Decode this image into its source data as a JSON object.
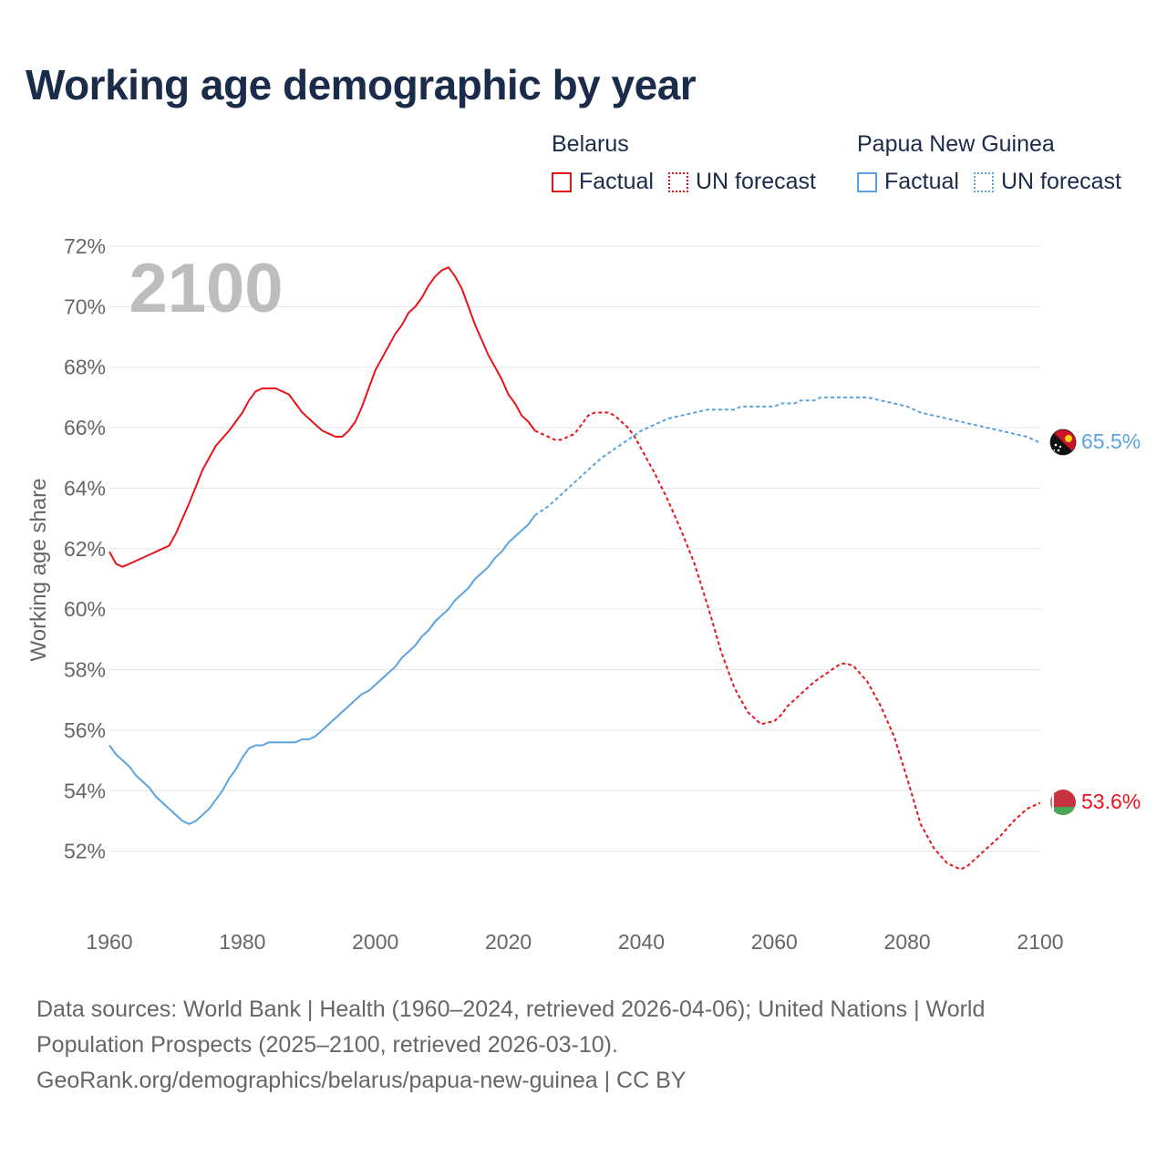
{
  "title": "Working age demographic by year",
  "legend": {
    "groups": [
      {
        "name": "Belarus",
        "color": "#e8141a",
        "factual_label": "Factual",
        "forecast_label": "UN forecast"
      },
      {
        "name": "Papua New Guinea",
        "color": "#5ba3e0",
        "factual_label": "Factual",
        "forecast_label": "UN forecast"
      }
    ]
  },
  "year_watermark": "2100",
  "end_labels": {
    "belarus": "53.6%",
    "png": "65.5%"
  },
  "footer": {
    "line1": "Data sources: World Bank | Health (1960–2024, retrieved 2026-04-06); United Nations | World",
    "line2": "Population Prospects (2025–2100, retrieved 2026-03-10).",
    "line3": "GeoRank.org/demographics/belarus/papua-new-guinea | CC BY"
  },
  "chart_data": {
    "type": "line",
    "title": "Working age demographic by year",
    "xlabel": "",
    "ylabel": "Working age share",
    "xlim": [
      1960,
      2100
    ],
    "ylim": [
      50,
      72
    ],
    "x_ticks": [
      "1960",
      "1980",
      "2000",
      "2020",
      "2040",
      "2060",
      "2080",
      "2100"
    ],
    "y_ticks": [
      "52%",
      "54%",
      "56%",
      "58%",
      "60%",
      "62%",
      "64%",
      "66%",
      "68%",
      "70%",
      "72%"
    ],
    "series": [
      {
        "name": "Belarus",
        "kind": "Factual",
        "color": "#e8141a",
        "points": [
          [
            1960,
            61.9
          ],
          [
            1961,
            61.5
          ],
          [
            1962,
            61.4
          ],
          [
            1964,
            61.6
          ],
          [
            1966,
            61.8
          ],
          [
            1968,
            62.0
          ],
          [
            1969,
            62.1
          ],
          [
            1970,
            62.5
          ],
          [
            1972,
            63.5
          ],
          [
            1974,
            64.6
          ],
          [
            1976,
            65.4
          ],
          [
            1978,
            65.9
          ],
          [
            1979,
            66.2
          ],
          [
            1980,
            66.5
          ],
          [
            1981,
            66.9
          ],
          [
            1982,
            67.2
          ],
          [
            1983,
            67.3
          ],
          [
            1984,
            67.3
          ],
          [
            1985,
            67.3
          ],
          [
            1986,
            67.2
          ],
          [
            1987,
            67.1
          ],
          [
            1988,
            66.8
          ],
          [
            1989,
            66.5
          ],
          [
            1990,
            66.3
          ],
          [
            1992,
            65.9
          ],
          [
            1993,
            65.8
          ],
          [
            1994,
            65.7
          ],
          [
            1995,
            65.7
          ],
          [
            1996,
            65.9
          ],
          [
            1997,
            66.2
          ],
          [
            1998,
            66.7
          ],
          [
            1999,
            67.3
          ],
          [
            2000,
            67.9
          ],
          [
            2001,
            68.3
          ],
          [
            2002,
            68.7
          ],
          [
            2003,
            69.1
          ],
          [
            2004,
            69.4
          ],
          [
            2005,
            69.8
          ],
          [
            2006,
            70.0
          ],
          [
            2007,
            70.3
          ],
          [
            2008,
            70.7
          ],
          [
            2009,
            71.0
          ],
          [
            2010,
            71.2
          ],
          [
            2011,
            71.3
          ],
          [
            2012,
            71.0
          ],
          [
            2013,
            70.6
          ],
          [
            2014,
            70.0
          ],
          [
            2015,
            69.4
          ],
          [
            2016,
            68.9
          ],
          [
            2017,
            68.4
          ],
          [
            2018,
            68.0
          ],
          [
            2019,
            67.6
          ],
          [
            2020,
            67.1
          ],
          [
            2021,
            66.8
          ],
          [
            2022,
            66.4
          ],
          [
            2023,
            66.2
          ],
          [
            2024,
            65.9
          ]
        ]
      },
      {
        "name": "Belarus",
        "kind": "UN forecast",
        "color": "#e8141a",
        "points": [
          [
            2024,
            65.9
          ],
          [
            2025,
            65.8
          ],
          [
            2026,
            65.7
          ],
          [
            2027,
            65.6
          ],
          [
            2028,
            65.6
          ],
          [
            2029,
            65.7
          ],
          [
            2030,
            65.8
          ],
          [
            2031,
            66.1
          ],
          [
            2032,
            66.4
          ],
          [
            2033,
            66.5
          ],
          [
            2034,
            66.5
          ],
          [
            2035,
            66.5
          ],
          [
            2036,
            66.4
          ],
          [
            2037,
            66.2
          ],
          [
            2038,
            66.0
          ],
          [
            2039,
            65.7
          ],
          [
            2040,
            65.3
          ],
          [
            2042,
            64.5
          ],
          [
            2044,
            63.6
          ],
          [
            2046,
            62.6
          ],
          [
            2048,
            61.5
          ],
          [
            2050,
            60.1
          ],
          [
            2052,
            58.6
          ],
          [
            2054,
            57.4
          ],
          [
            2056,
            56.6
          ],
          [
            2058,
            56.2
          ],
          [
            2060,
            56.3
          ],
          [
            2061,
            56.5
          ],
          [
            2062,
            56.8
          ],
          [
            2064,
            57.2
          ],
          [
            2066,
            57.6
          ],
          [
            2068,
            57.9
          ],
          [
            2070,
            58.2
          ],
          [
            2071,
            58.2
          ],
          [
            2072,
            58.1
          ],
          [
            2074,
            57.6
          ],
          [
            2076,
            56.8
          ],
          [
            2078,
            55.8
          ],
          [
            2080,
            54.4
          ],
          [
            2082,
            52.9
          ],
          [
            2084,
            52.1
          ],
          [
            2086,
            51.6
          ],
          [
            2088,
            51.4
          ],
          [
            2089,
            51.5
          ],
          [
            2090,
            51.7
          ],
          [
            2092,
            52.1
          ],
          [
            2094,
            52.5
          ],
          [
            2096,
            53.0
          ],
          [
            2098,
            53.4
          ],
          [
            2100,
            53.6
          ]
        ]
      },
      {
        "name": "Papua New Guinea",
        "kind": "Factual",
        "color": "#5ba3e0",
        "points": [
          [
            1960,
            55.5
          ],
          [
            1961,
            55.2
          ],
          [
            1962,
            55.0
          ],
          [
            1963,
            54.8
          ],
          [
            1964,
            54.5
          ],
          [
            1965,
            54.3
          ],
          [
            1966,
            54.1
          ],
          [
            1967,
            53.8
          ],
          [
            1968,
            53.6
          ],
          [
            1969,
            53.4
          ],
          [
            1970,
            53.2
          ],
          [
            1971,
            53.0
          ],
          [
            1972,
            52.9
          ],
          [
            1973,
            53.0
          ],
          [
            1974,
            53.2
          ],
          [
            1975,
            53.4
          ],
          [
            1976,
            53.7
          ],
          [
            1977,
            54.0
          ],
          [
            1978,
            54.4
          ],
          [
            1979,
            54.7
          ],
          [
            1980,
            55.1
          ],
          [
            1981,
            55.4
          ],
          [
            1982,
            55.5
          ],
          [
            1983,
            55.5
          ],
          [
            1984,
            55.6
          ],
          [
            1986,
            55.6
          ],
          [
            1988,
            55.6
          ],
          [
            1989,
            55.7
          ],
          [
            1990,
            55.7
          ],
          [
            1991,
            55.8
          ],
          [
            1992,
            56.0
          ],
          [
            1994,
            56.4
          ],
          [
            1996,
            56.8
          ],
          [
            1998,
            57.2
          ],
          [
            1999,
            57.3
          ],
          [
            2000,
            57.5
          ],
          [
            2002,
            57.9
          ],
          [
            2003,
            58.1
          ],
          [
            2004,
            58.4
          ],
          [
            2005,
            58.6
          ],
          [
            2006,
            58.8
          ],
          [
            2007,
            59.1
          ],
          [
            2008,
            59.3
          ],
          [
            2009,
            59.6
          ],
          [
            2010,
            59.8
          ],
          [
            2011,
            60.0
          ],
          [
            2012,
            60.3
          ],
          [
            2013,
            60.5
          ],
          [
            2014,
            60.7
          ],
          [
            2015,
            61.0
          ],
          [
            2016,
            61.2
          ],
          [
            2017,
            61.4
          ],
          [
            2018,
            61.7
          ],
          [
            2019,
            61.9
          ],
          [
            2020,
            62.2
          ],
          [
            2021,
            62.4
          ],
          [
            2022,
            62.6
          ],
          [
            2023,
            62.8
          ],
          [
            2024,
            63.1
          ]
        ]
      },
      {
        "name": "Papua New Guinea",
        "kind": "UN forecast",
        "color": "#5ba3e0",
        "points": [
          [
            2024,
            63.1
          ],
          [
            2026,
            63.4
          ],
          [
            2028,
            63.8
          ],
          [
            2030,
            64.2
          ],
          [
            2032,
            64.6
          ],
          [
            2034,
            65.0
          ],
          [
            2036,
            65.3
          ],
          [
            2038,
            65.6
          ],
          [
            2040,
            65.9
          ],
          [
            2042,
            66.1
          ],
          [
            2044,
            66.3
          ],
          [
            2046,
            66.4
          ],
          [
            2048,
            66.5
          ],
          [
            2050,
            66.6
          ],
          [
            2052,
            66.6
          ],
          [
            2054,
            66.6
          ],
          [
            2055,
            66.7
          ],
          [
            2058,
            66.7
          ],
          [
            2060,
            66.7
          ],
          [
            2061,
            66.8
          ],
          [
            2063,
            66.8
          ],
          [
            2064,
            66.9
          ],
          [
            2066,
            66.9
          ],
          [
            2067,
            67.0
          ],
          [
            2070,
            67.0
          ],
          [
            2072,
            67.0
          ],
          [
            2074,
            67.0
          ],
          [
            2076,
            66.9
          ],
          [
            2078,
            66.8
          ],
          [
            2080,
            66.7
          ],
          [
            2082,
            66.5
          ],
          [
            2084,
            66.4
          ],
          [
            2086,
            66.3
          ],
          [
            2088,
            66.2
          ],
          [
            2090,
            66.1
          ],
          [
            2092,
            66.0
          ],
          [
            2094,
            65.9
          ],
          [
            2096,
            65.8
          ],
          [
            2098,
            65.7
          ],
          [
            2100,
            65.5
          ]
        ]
      }
    ],
    "end_values": {
      "Belarus": 53.6,
      "Papua New Guinea": 65.5
    },
    "grid": true,
    "legend": "top-right"
  }
}
